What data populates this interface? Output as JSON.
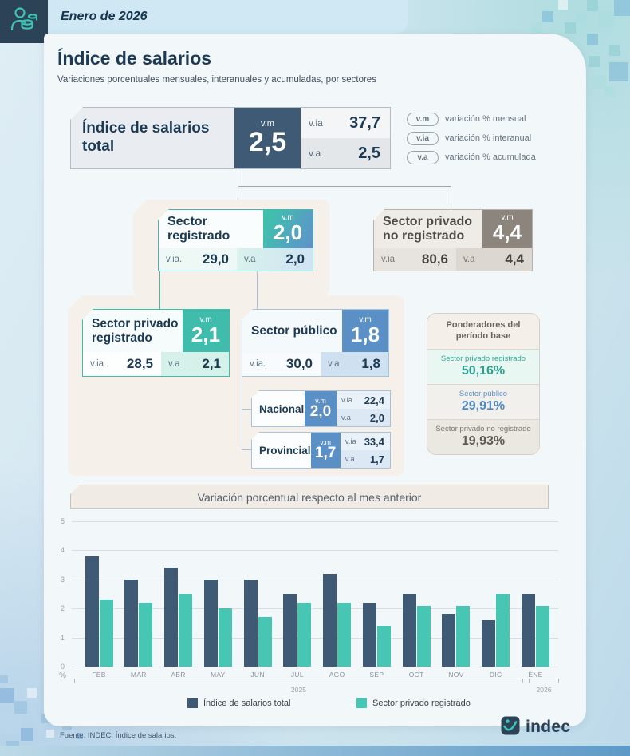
{
  "header": {
    "period": "Enero de 2026"
  },
  "title": "Índice de salarios",
  "subtitle": "Variaciones porcentuales mensuales, interanuales y acumuladas, por sectores",
  "codes": {
    "vm": "v.m",
    "via": "v.ia",
    "via_dot": "v.ia.",
    "va": "v.a"
  },
  "legend": [
    {
      "code": "v.m",
      "label": "variación % mensual"
    },
    {
      "code": "v.ia",
      "label": "variación % interanual"
    },
    {
      "code": "v.a",
      "label": "variación % acumulada"
    }
  ],
  "total": {
    "label": "Índice de salarios total",
    "vm": "2,5",
    "via": "37,7",
    "va": "2,5"
  },
  "sectors": {
    "registrado": {
      "label": "Sector registrado",
      "vm": "2,0",
      "via": "29,0",
      "va": "2,0"
    },
    "privado_no_registrado": {
      "label": "Sector privado no registrado",
      "vm": "4,4",
      "via": "80,6",
      "va": "4,4"
    },
    "privado_registrado": {
      "label": "Sector privado registrado",
      "vm": "2,1",
      "via": "28,5",
      "va": "2,1"
    },
    "publico": {
      "label": "Sector público",
      "vm": "1,8",
      "via": "30,0",
      "va": "1,8"
    },
    "nacional": {
      "label": "Nacional",
      "vm": "2,0",
      "via": "22,4",
      "va": "2,0"
    },
    "provincial": {
      "label": "Provincial",
      "vm": "1,7",
      "via": "33,4",
      "va": "1,7"
    }
  },
  "ponderadores": {
    "title": "Ponderadores del período base",
    "items": [
      {
        "label": "Sector privado registrado",
        "value": "50,16%",
        "color": "#2ca08d"
      },
      {
        "label": "Sector público",
        "value": "29,91%",
        "color": "#4f88c2"
      },
      {
        "label": "Sector privado no registrado",
        "value": "19,93%",
        "color": "#5f5952"
      }
    ]
  },
  "chart_data": {
    "type": "bar",
    "title": "Variación porcentual respecto al mes anterior",
    "categories": [
      "FEB",
      "MAR",
      "ABR",
      "MAY",
      "JUN",
      "JUL",
      "AGO",
      "SEP",
      "OCT",
      "NOV",
      "DIC",
      "ENE"
    ],
    "series": [
      {
        "name": "Índice de salarios total",
        "color": "#3e5a75",
        "values": [
          3.8,
          3.0,
          3.4,
          3.0,
          3.0,
          2.5,
          3.2,
          2.2,
          2.5,
          1.8,
          1.6,
          2.5
        ]
      },
      {
        "name": "Sector privado registrado",
        "color": "#48c6b4",
        "values": [
          2.3,
          2.2,
          2.5,
          2.0,
          1.7,
          2.2,
          2.2,
          1.4,
          2.1,
          2.1,
          2.5,
          2.1
        ]
      }
    ],
    "ylabel": "%",
    "ylim": [
      0,
      5
    ],
    "yticks": [
      0,
      1,
      2,
      3,
      4,
      5
    ],
    "grid": true,
    "legend_position": "bottom",
    "year_groups": [
      {
        "label": "2025",
        "categories": [
          "FEB",
          "MAR",
          "ABR",
          "MAY",
          "JUN",
          "JUL",
          "AGO",
          "SEP",
          "OCT",
          "NOV",
          "DIC"
        ]
      },
      {
        "label": "2026",
        "categories": [
          "ENE"
        ]
      }
    ]
  },
  "colors": {
    "navy": "#3e5a75",
    "teal": "#3fbcab",
    "blue": "#5b90c6",
    "warm_gray": "#8b857e",
    "cream": "#f5f0e9"
  },
  "footer": {
    "source": "Fuente: INDEC, Índice de salarios.",
    "logo_text": "indec"
  }
}
